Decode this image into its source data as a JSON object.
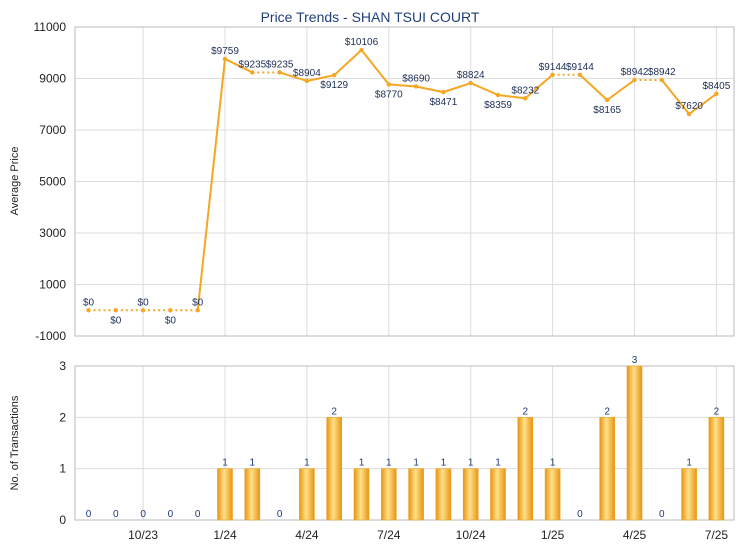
{
  "chart_data": {
    "type": "line+bar",
    "title": "Price Trends - SHAN TSUI COURT",
    "colors": {
      "line": "#f5a623",
      "bar": "#f0a020",
      "bar_light": "#ffe08a",
      "label": "#1b2e55"
    },
    "months": [
      "2023-08",
      "2023-09",
      "2023-10",
      "2023-11",
      "2023-12",
      "2024-01",
      "2024-02",
      "2024-03",
      "2024-04",
      "2024-05",
      "2024-06",
      "2024-07",
      "2024-08",
      "2024-09",
      "2024-10",
      "2024-11",
      "2024-12",
      "2025-01",
      "2025-02",
      "2025-03",
      "2025-04",
      "2025-05",
      "2025-06",
      "2025-07"
    ],
    "x_ticks": [
      {
        "month": "2023-10",
        "label": "10/23"
      },
      {
        "month": "2024-01",
        "label": "1/24"
      },
      {
        "month": "2024-04",
        "label": "4/24"
      },
      {
        "month": "2024-07",
        "label": "7/24"
      },
      {
        "month": "2024-10",
        "label": "10/24"
      },
      {
        "month": "2025-01",
        "label": "1/25"
      },
      {
        "month": "2025-04",
        "label": "4/25"
      },
      {
        "month": "2025-07",
        "label": "7/25"
      }
    ],
    "price": {
      "ylabel": "Average Price",
      "ylim": [
        -1000,
        11000
      ],
      "yticks": [
        -1000,
        1000,
        3000,
        5000,
        7000,
        9000,
        11000
      ],
      "values": [
        0,
        0,
        0,
        0,
        0,
        9759,
        9235,
        9235,
        8904,
        9129,
        10106,
        8770,
        8690,
        8471,
        8824,
        8359,
        8232,
        9144,
        9144,
        8165,
        8942,
        8942,
        7620,
        8405
      ],
      "labels": [
        "$0",
        "$0",
        "$0",
        "$0",
        "$0",
        "$9759",
        "$9235",
        "$9235",
        "$8904",
        "$9129",
        "$10106",
        "$8770",
        "$8690",
        "$8471",
        "$8824",
        "$8359",
        "$8232",
        "$9144",
        "$9144",
        "$8165",
        "$8942",
        "$8942",
        "$7620",
        "$8405"
      ],
      "carried_forward": [
        false,
        true,
        false,
        true,
        false,
        false,
        false,
        true,
        false,
        false,
        false,
        false,
        false,
        false,
        false,
        false,
        false,
        false,
        true,
        false,
        false,
        true,
        false,
        false
      ]
    },
    "transactions": {
      "ylabel": "No. of Transactions",
      "ylim": [
        0,
        3
      ],
      "yticks": [
        0,
        1,
        2,
        3
      ],
      "values": [
        0,
        0,
        0,
        0,
        0,
        1,
        1,
        0,
        1,
        2,
        1,
        1,
        1,
        1,
        1,
        1,
        2,
        1,
        0,
        2,
        3,
        0,
        1,
        2
      ]
    }
  }
}
